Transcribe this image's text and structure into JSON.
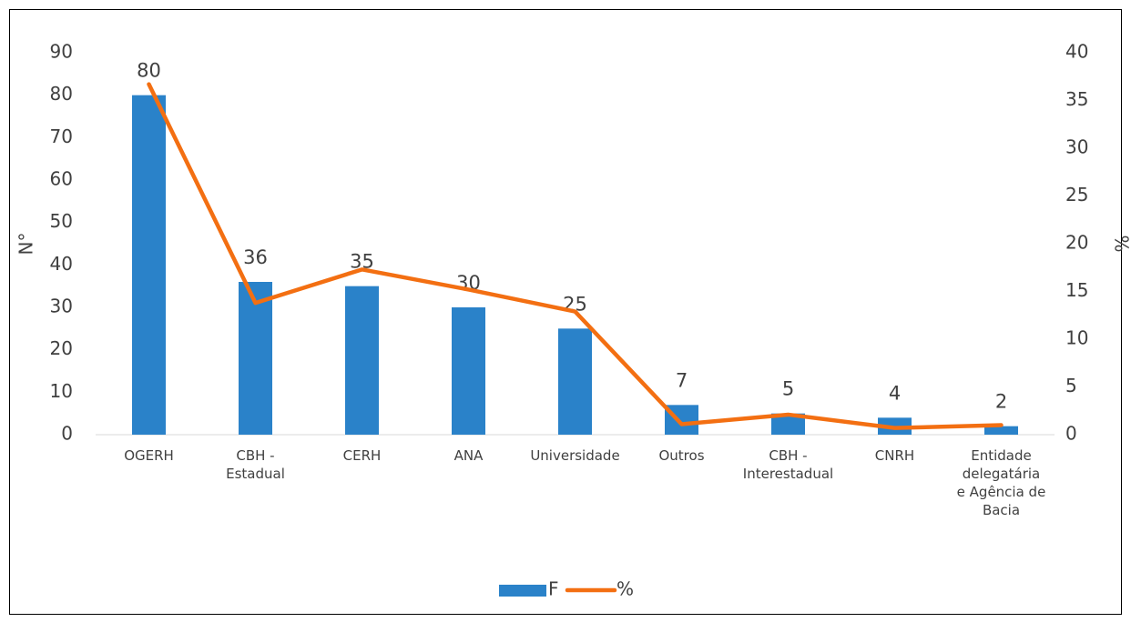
{
  "chart_data": {
    "type": "bar-line",
    "categories": [
      "OGERH",
      "CBH - Estadual",
      "CERH",
      "ANA",
      "Universidade",
      "Outros",
      "CBH - Interestadual",
      "CNRH",
      "Entidade delegatária e Agência de Bacia"
    ],
    "series": [
      {
        "name": "F",
        "type": "bar",
        "color": "#2a82c9",
        "values": [
          80,
          36,
          35,
          30,
          25,
          7,
          5,
          4,
          2
        ]
      },
      {
        "name": "%",
        "type": "line",
        "axis": "y2",
        "color": "#f36f12",
        "values": [
          36.7,
          13.8,
          17.3,
          15.2,
          12.9,
          1.1,
          2.1,
          0.7,
          1.0
        ]
      }
    ],
    "ylabel": "N°",
    "y2label": "%",
    "ylim": [
      0,
      90
    ],
    "yticks": [
      0,
      10,
      20,
      30,
      40,
      50,
      60,
      70,
      80,
      90
    ],
    "y2lim": [
      0,
      40
    ],
    "y2ticks": [
      0,
      5,
      10,
      15,
      20,
      25,
      30,
      35,
      40
    ],
    "legend": "bottom"
  }
}
